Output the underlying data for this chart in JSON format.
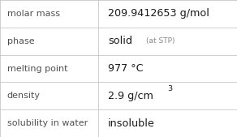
{
  "rows": [
    {
      "label": "molar mass",
      "value": "209.9412653 g/mol",
      "value_extra": null,
      "superscript": null
    },
    {
      "label": "phase",
      "value": "solid",
      "value_extra": "(at STP)",
      "superscript": null
    },
    {
      "label": "melting point",
      "value": "977 °C",
      "value_extra": null,
      "superscript": null
    },
    {
      "label": "density",
      "value": "2.9 g/cm",
      "value_extra": null,
      "superscript": "3"
    },
    {
      "label": "solubility in water",
      "value": "insoluble",
      "value_extra": null,
      "superscript": null
    }
  ],
  "n_rows": 5,
  "col_split": 0.415,
  "bg_color": "#ffffff",
  "border_color": "#c8c8c8",
  "label_color": "#505050",
  "value_color": "#1a1a1a",
  "extra_color": "#888888",
  "label_fontsize": 8.0,
  "value_fontsize": 9.2,
  "extra_fontsize": 6.5,
  "sup_fontsize": 6.8
}
